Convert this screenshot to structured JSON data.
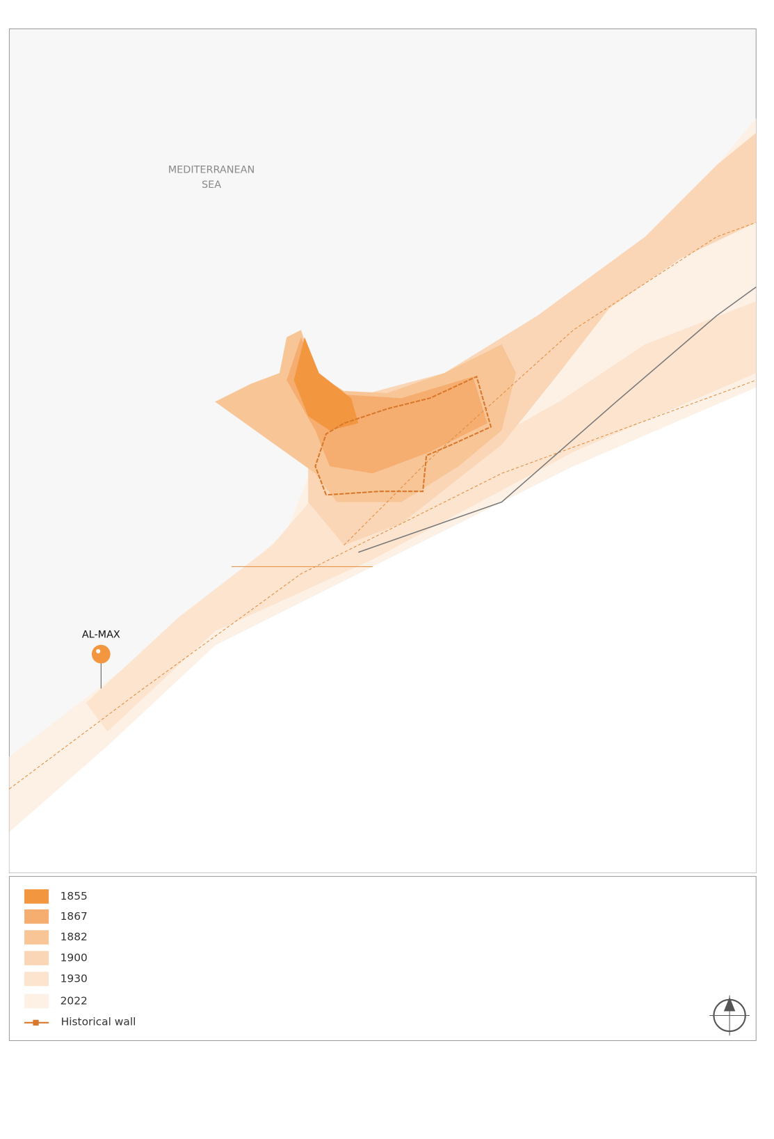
{
  "map": {
    "labels": {
      "sea": [
        "MEDITERRANEAN",
        "SEA"
      ],
      "place": "AL-MAX"
    }
  },
  "legend": {
    "items": [
      "1855",
      "1867",
      "1882",
      "1900",
      "1930",
      "2022"
    ],
    "wall": "Historical wall"
  }
}
